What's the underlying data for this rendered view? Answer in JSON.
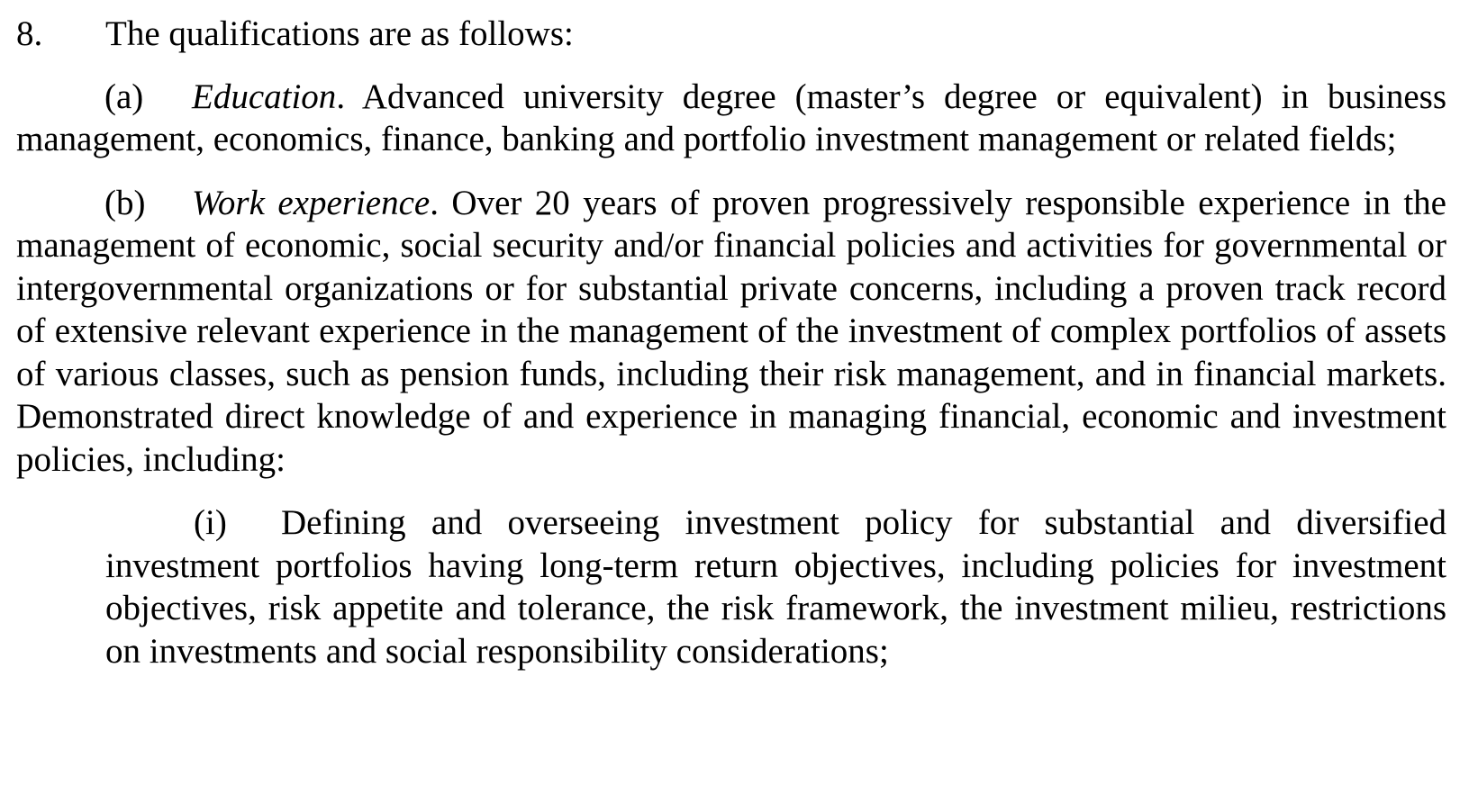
{
  "paragraph8": {
    "number": "8.",
    "heading": "The qualifications are as follows:"
  },
  "item_a": {
    "label": "(a)",
    "title": "Education",
    "title_end": ".",
    "text": " Advanced university degree (master’s degree or equivalent) in business management, economics, finance, banking and portfolio investment management or related fields;"
  },
  "item_b": {
    "label": "(b)",
    "title": "Work experience",
    "title_end": ".",
    "text": " Over 20 years of proven progressively responsible experience in the management of economic, social security and/or financial policies and activities for governmental or intergovernmental organizations or for substantial private concerns, including a proven track record of extensive relevant experience in the management of the investment of complex portfolios of assets of various classes, such as pension funds, including their risk management, and in financial markets. Demonstrated direct knowledge of and experience in managing financial, economic and investment policies, including:"
  },
  "subitem_i": {
    "label": "(i)",
    "text": "Defining and overseeing investment policy for substantial and diversified investment portfolios having long-term return objectives, including policies for investment objectives, risk appetite and tolerance, the risk framework, the investment milieu, restrictions on investments and social responsibility considerations;"
  }
}
